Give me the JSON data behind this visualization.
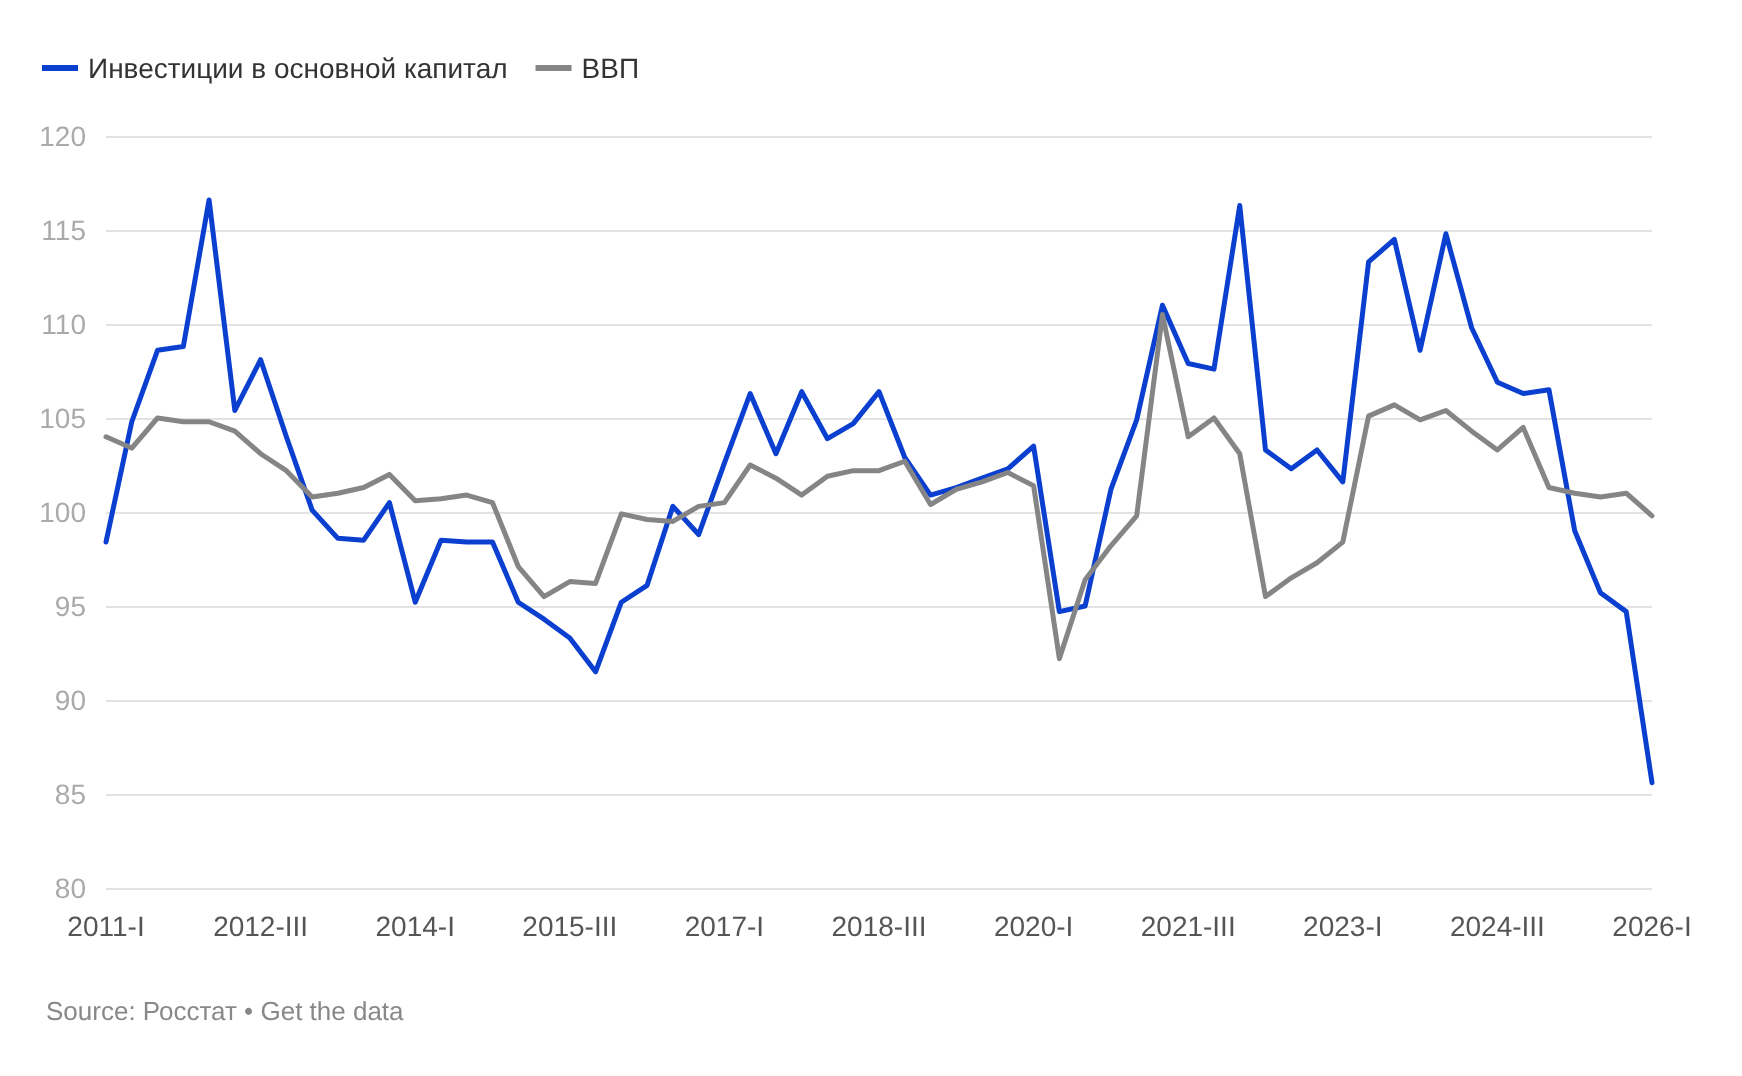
{
  "chart_data": {
    "type": "line",
    "categories": [
      "2011-I",
      null,
      null,
      null,
      null,
      null,
      "2012-III",
      null,
      null,
      null,
      null,
      null,
      "2014-I",
      null,
      null,
      null,
      null,
      null,
      "2015-III",
      null,
      null,
      null,
      null,
      null,
      "2017-I",
      null,
      null,
      null,
      null,
      null,
      "2018-III",
      null,
      null,
      null,
      null,
      null,
      "2020-I",
      null,
      null,
      null,
      null,
      null,
      "2021-III",
      null,
      null,
      null,
      null,
      null,
      "2023-I",
      null,
      null,
      null,
      null,
      null,
      "2024-III",
      null,
      null,
      null,
      null,
      null,
      "2026-I"
    ],
    "series": [
      {
        "name": "Инвестиции в основной капитал",
        "color": "#0a3fd0",
        "values": [
          98.4,
          104.8,
          108.6,
          108.8,
          116.6,
          105.4,
          108.1,
          104.0,
          100.1,
          98.6,
          98.5,
          100.5,
          95.2,
          98.5,
          98.4,
          98.4,
          95.2,
          94.3,
          93.3,
          91.5,
          95.2,
          96.1,
          100.3,
          98.8,
          102.6,
          106.3,
          103.1,
          106.4,
          103.9,
          104.7,
          106.4,
          102.9,
          100.9,
          101.3,
          101.8,
          102.3,
          103.5,
          94.7,
          95.0,
          101.2,
          104.9,
          111.0,
          107.9,
          107.6,
          116.3,
          103.3,
          102.3,
          103.3,
          101.6,
          113.3,
          114.5,
          108.6,
          114.8,
          109.8,
          106.9,
          106.3,
          106.5,
          99.0,
          95.7,
          94.7,
          85.6
        ]
      },
      {
        "name": "ВВП",
        "color": "#858585",
        "values": [
          104.0,
          103.4,
          105.0,
          104.8,
          104.8,
          104.3,
          103.1,
          102.2,
          100.8,
          101.0,
          101.3,
          102.0,
          100.6,
          100.7,
          100.9,
          100.5,
          97.1,
          95.5,
          96.3,
          96.2,
          99.9,
          99.6,
          99.5,
          100.3,
          100.5,
          102.5,
          101.8,
          100.9,
          101.9,
          102.2,
          102.2,
          102.7,
          100.4,
          101.2,
          101.6,
          102.1,
          101.4,
          92.2,
          96.4,
          98.2,
          99.8,
          110.5,
          104.0,
          105.0,
          103.1,
          95.5,
          96.5,
          97.3,
          98.4,
          105.1,
          105.7,
          104.9,
          105.4,
          104.3,
          103.3,
          104.5,
          101.3,
          101.0,
          100.8,
          101.0,
          99.8
        ]
      }
    ],
    "ylim": [
      80,
      120
    ],
    "yticks": [
      80,
      85,
      90,
      95,
      100,
      105,
      110,
      115,
      120
    ],
    "grid": "y",
    "legend": "top left",
    "marker": "none",
    "line_style": "solid",
    "annotations": [
      "Source: Росстат • Get the data"
    ]
  }
}
